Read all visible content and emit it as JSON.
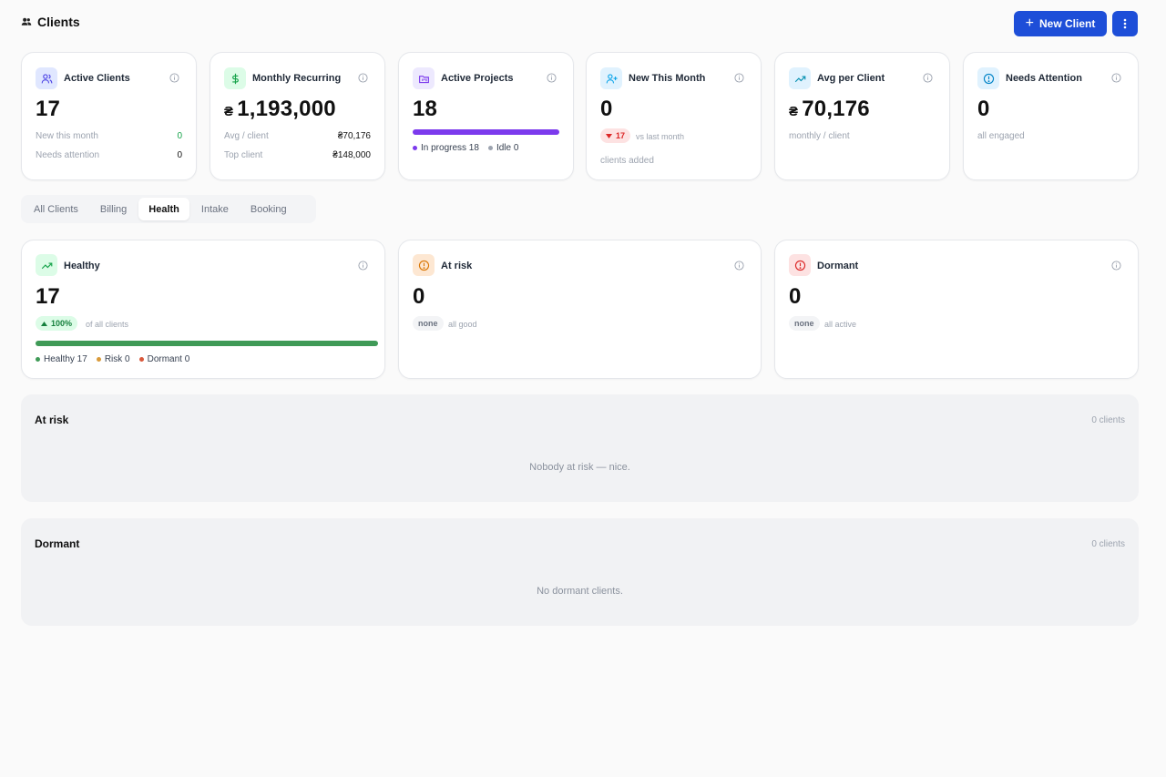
{
  "header": {
    "title": "Clients",
    "title_icon": "users-icon",
    "new_client_label": "New Client",
    "accent": "#1d4ed8"
  },
  "kpis": [
    {
      "label": "Active Clients",
      "icon": "users-icon",
      "value": "17",
      "rows": [
        {
          "k": "New this month",
          "v": "0"
        },
        {
          "k": "Needs attention",
          "v": "0"
        }
      ]
    },
    {
      "label": "Monthly Recurring",
      "icon": "dollar-icon",
      "currency": "₴",
      "value": "1,193,000",
      "rows": [
        {
          "k": "Avg / client",
          "v": "₴70,176"
        },
        {
          "k": "Top client",
          "v": "₴148,000"
        }
      ]
    },
    {
      "label": "Active Projects",
      "icon": "folder-kanban-icon",
      "value": "18",
      "progress_in_progress_fraction": 1.0,
      "legend": [
        "In progress 18",
        "Idle 0"
      ]
    },
    {
      "label": "New This Month",
      "icon": "user-plus-icon",
      "value": "0",
      "delta": "17",
      "delta_direction": "down",
      "delta_note": "vs last month",
      "sub": "clients added"
    },
    {
      "label": "Avg per Client",
      "icon": "trending-up-icon",
      "currency": "₴",
      "value": "70,176",
      "sub": "monthly / client"
    },
    {
      "label": "Needs Attention",
      "icon": "alert-circle-icon",
      "value": "0",
      "sub": "all engaged"
    }
  ],
  "tabs": [
    "All Clients",
    "Billing",
    "Health",
    "Intake",
    "Booking"
  ],
  "active_tab": "Health",
  "health": [
    {
      "label": "Healthy",
      "icon": "trending-up-icon",
      "value": "17",
      "pill": "100%",
      "pill_note": "of all clients",
      "bar_fraction": 1.0,
      "legend": [
        "Healthy 17",
        "Risk 0",
        "Dormant 0"
      ]
    },
    {
      "label": "At risk",
      "icon": "alert-circle-icon",
      "value": "0",
      "pill": "none",
      "pill_note": "all good"
    },
    {
      "label": "Dormant",
      "icon": "alert-circle-icon",
      "value": "0",
      "pill": "none",
      "pill_note": "all active"
    }
  ],
  "sections": [
    {
      "title": "At risk",
      "count": "0 clients",
      "empty": "Nobody at risk — nice."
    },
    {
      "title": "Dormant",
      "count": "0 clients",
      "empty": "No dormant clients."
    }
  ]
}
